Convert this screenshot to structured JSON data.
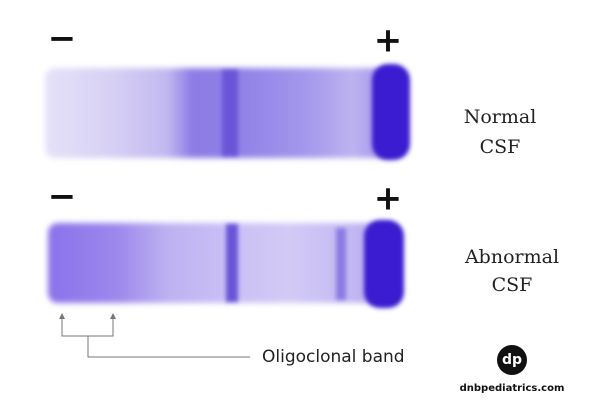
{
  "strips": [
    {
      "minus": "−",
      "plus": "+",
      "label": [
        "Normal",
        "CSF"
      ]
    },
    {
      "minus": "−",
      "plus": "+",
      "label": [
        "Abnormal",
        "CSF"
      ]
    }
  ],
  "annotation": "Oligoclonal band",
  "logo": {
    "mark": "dp",
    "site": "dnbpediatrics.com"
  }
}
